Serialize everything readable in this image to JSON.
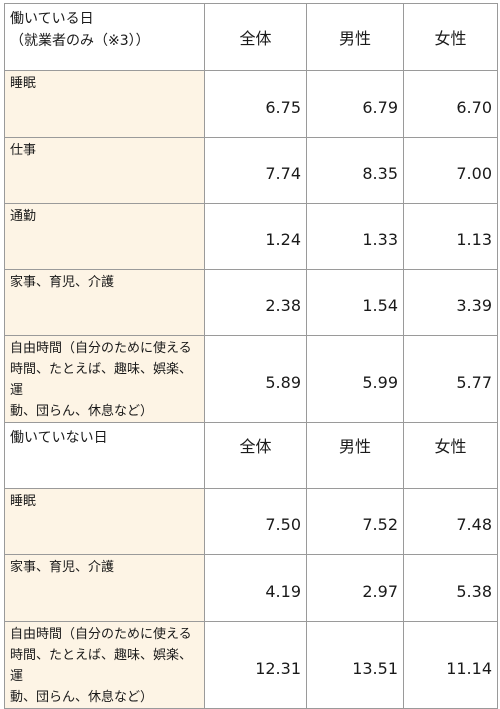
{
  "section1": {
    "title_line1": "働いている日",
    "title_line2": "（就業者のみ（※3））",
    "columns": [
      "全体",
      "男性",
      "女性"
    ],
    "rows": [
      {
        "label_lines": [
          "睡眠"
        ],
        "values": [
          "6.75",
          "6.79",
          "6.70"
        ]
      },
      {
        "label_lines": [
          "仕事"
        ],
        "values": [
          "7.74",
          "8.35",
          "7.00"
        ]
      },
      {
        "label_lines": [
          "通勤"
        ],
        "values": [
          "1.24",
          "1.33",
          "1.13"
        ]
      },
      {
        "label_lines": [
          "家事、育児、介護"
        ],
        "values": [
          "2.38",
          "1.54",
          "3.39"
        ]
      },
      {
        "label_lines": [
          "自由時間（自分のために使える",
          "時間、たとえば、趣味、娯楽、運",
          "動、団らん、休息など）"
        ],
        "values": [
          "5.89",
          "5.99",
          "5.77"
        ]
      }
    ]
  },
  "section2": {
    "title_line1": "働いていない日",
    "columns": [
      "全体",
      "男性",
      "女性"
    ],
    "rows": [
      {
        "label_lines": [
          "睡眠"
        ],
        "values": [
          "7.50",
          "7.52",
          "7.48"
        ]
      },
      {
        "label_lines": [
          "家事、育児、介護"
        ],
        "values": [
          "4.19",
          "2.97",
          "5.38"
        ]
      },
      {
        "label_lines": [
          "自由時間（自分のために使える",
          "時間、たとえば、趣味、娯楽、運",
          "動、団らん、休息など）"
        ],
        "values": [
          "12.31",
          "13.51",
          "11.14"
        ]
      }
    ]
  }
}
